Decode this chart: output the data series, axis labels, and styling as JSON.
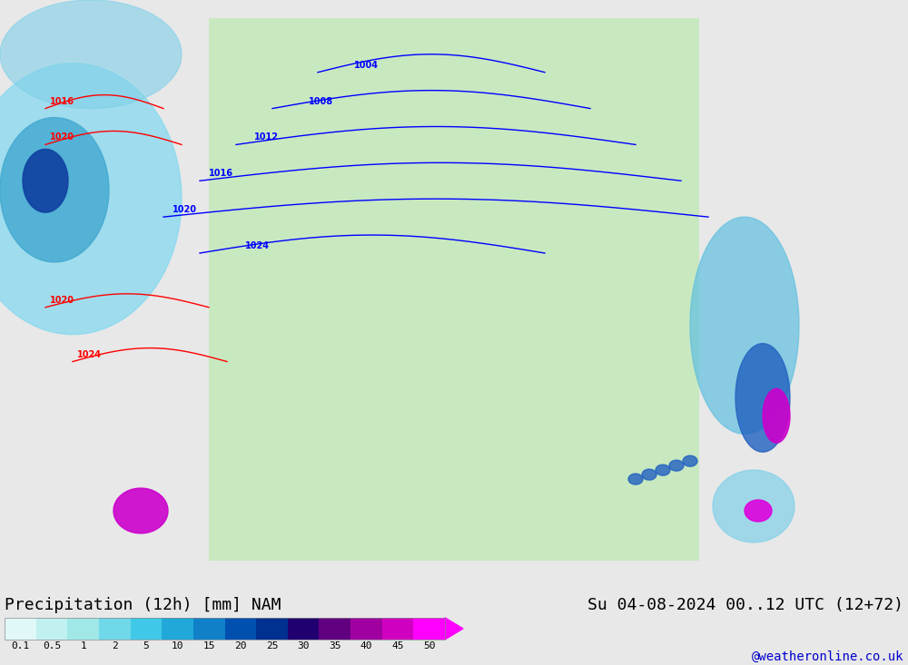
{
  "title_left": "Precipitation (12h) [mm] NAM",
  "title_right": "Su 04-08-2024 00..12 UTC (12+72)",
  "credit": "@weatheronline.co.uk",
  "colorbar_values": [
    0.1,
    0.5,
    1,
    2,
    5,
    10,
    15,
    20,
    25,
    30,
    35,
    40,
    45,
    50
  ],
  "colorbar_colors": [
    "#e0f8f8",
    "#c0f0f0",
    "#a0e8e8",
    "#70d8e8",
    "#40c8e8",
    "#20a8d8",
    "#1080c8",
    "#0050b0",
    "#003090",
    "#200070",
    "#600080",
    "#a000a0",
    "#d000c0",
    "#ff00ff"
  ],
  "bg_color": "#e8e8e8",
  "map_bg": "#d0e8ff",
  "land_color": "#c8e8c0",
  "figsize": [
    10.0,
    7.33
  ],
  "dpi": 100,
  "text_color": "#000080",
  "title_fontsize": 13,
  "credit_fontsize": 10
}
